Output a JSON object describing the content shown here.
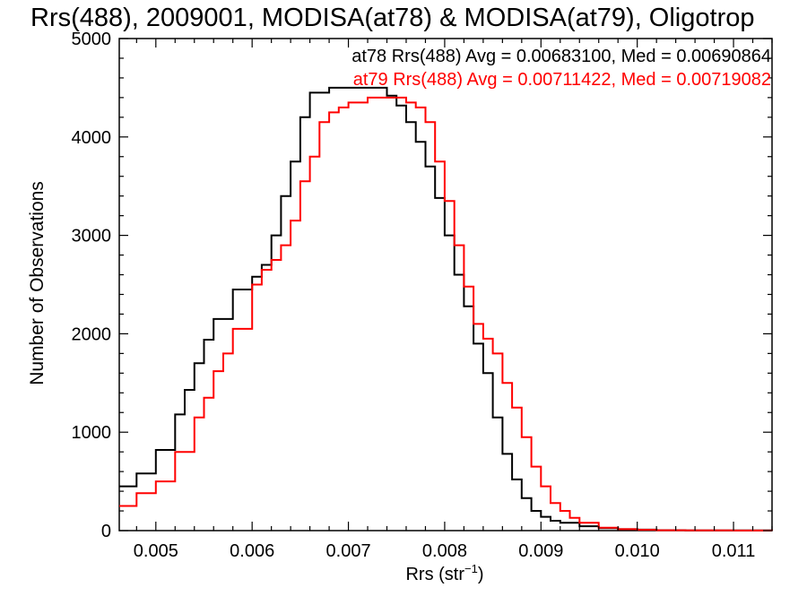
{
  "chart_data": {
    "type": "line",
    "step": true,
    "title": "Rrs(488), 2009001, MODISA(at78) & MODISA(at79), Oligotrop",
    "xlabel_base": "Rrs (str",
    "xlabel_sup": "−1",
    "xlabel_close": ")",
    "ylabel": "Number of Observations",
    "xlim": [
      0.00462,
      0.0114
    ],
    "ylim": [
      0,
      5000
    ],
    "xticks": [
      0.005,
      0.006,
      0.007,
      0.008,
      0.009,
      0.01,
      0.011
    ],
    "xtick_labels": [
      "0.005",
      "0.006",
      "0.007",
      "0.008",
      "0.009",
      "0.010",
      "0.011"
    ],
    "yticks": [
      0,
      1000,
      2000,
      3000,
      4000,
      5000
    ],
    "ytick_labels": [
      "0",
      "1000",
      "2000",
      "3000",
      "4000",
      "5000"
    ],
    "grid": false,
    "annotations": [
      {
        "text": "at78 Rrs(488) Avg = 0.00683100, Med = 0.00690864",
        "color": "#000000"
      },
      {
        "text": "at79 Rrs(488) Avg = 0.00711422, Med = 0.00719082",
        "color": "#ff0000"
      }
    ],
    "series": [
      {
        "color": "#000000",
        "x": [
          0.00462,
          0.0048,
          0.005,
          0.0052,
          0.0053,
          0.0054,
          0.0055,
          0.0056,
          0.0058,
          0.006,
          0.0061,
          0.0062,
          0.0063,
          0.0064,
          0.0065,
          0.0066,
          0.0068,
          0.007,
          0.0072,
          0.0074,
          0.0075,
          0.0076,
          0.0077,
          0.0078,
          0.0079,
          0.008,
          0.0081,
          0.0082,
          0.0083,
          0.0084,
          0.0085,
          0.0086,
          0.0087,
          0.0088,
          0.0089,
          0.009,
          0.0091,
          0.0092,
          0.0094,
          0.0096,
          0.0098,
          0.01,
          0.0102,
          0.0105,
          0.011,
          0.0114
        ],
        "y": [
          450,
          580,
          820,
          1180,
          1430,
          1700,
          1940,
          2150,
          2450,
          2580,
          2700,
          3000,
          3400,
          3750,
          4200,
          4450,
          4500,
          4500,
          4500,
          4420,
          4320,
          4150,
          3950,
          3700,
          3380,
          3000,
          2600,
          2280,
          1900,
          1600,
          1150,
          780,
          520,
          330,
          200,
          140,
          100,
          80,
          45,
          25,
          15,
          10,
          5,
          3,
          2,
          0
        ]
      },
      {
        "color": "#ff0000",
        "x": [
          0.00462,
          0.0048,
          0.005,
          0.0052,
          0.0054,
          0.0055,
          0.0056,
          0.0057,
          0.0058,
          0.006,
          0.0061,
          0.0062,
          0.0063,
          0.0064,
          0.0065,
          0.0066,
          0.0067,
          0.0068,
          0.0069,
          0.007,
          0.0072,
          0.0074,
          0.0076,
          0.0077,
          0.0078,
          0.0079,
          0.008,
          0.0081,
          0.0082,
          0.0083,
          0.0084,
          0.0085,
          0.0086,
          0.0087,
          0.0088,
          0.0089,
          0.009,
          0.0091,
          0.0092,
          0.0093,
          0.0094,
          0.0096,
          0.0098,
          0.01,
          0.0102,
          0.0105,
          0.011,
          0.0114
        ],
        "y": [
          250,
          380,
          500,
          800,
          1150,
          1350,
          1620,
          1800,
          2050,
          2500,
          2650,
          2750,
          2900,
          3150,
          3550,
          3800,
          4150,
          4250,
          4300,
          4350,
          4400,
          4400,
          4350,
          4300,
          4150,
          3750,
          3350,
          2900,
          2480,
          2100,
          1950,
          1800,
          1500,
          1250,
          950,
          650,
          450,
          280,
          200,
          130,
          80,
          30,
          15,
          8,
          4,
          2,
          1,
          0
        ]
      }
    ]
  }
}
